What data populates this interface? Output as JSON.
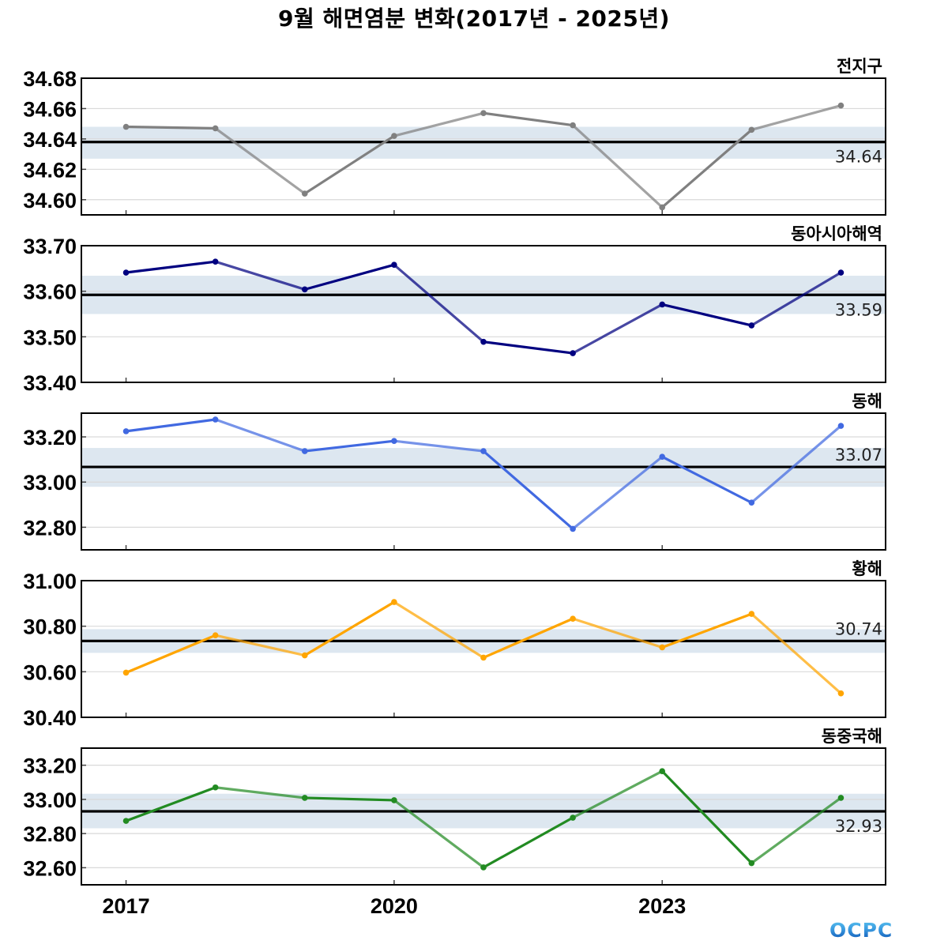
{
  "title": "9월 해면염분 변화(2017년 - 2025년)",
  "logo_text": "OCPC",
  "chart_data": [
    {
      "type": "line",
      "title": "전지구",
      "x": [
        2017,
        2018,
        2019,
        2020,
        2021,
        2022,
        2023,
        2024,
        2025
      ],
      "xticks": [
        2017,
        2020,
        2023
      ],
      "xlim": [
        2016.5,
        2025.5
      ],
      "ylim": [
        34.59,
        34.68
      ],
      "yticks": [
        "34.60",
        "34.62",
        "34.64",
        "34.66",
        "34.68"
      ],
      "ytick_values": [
        34.6,
        34.62,
        34.64,
        34.66,
        34.68
      ],
      "values": [
        34.648,
        34.647,
        34.604,
        34.642,
        34.657,
        34.649,
        34.595,
        34.646,
        34.662
      ],
      "mean": 34.638,
      "mean_label": "34.64",
      "band": [
        34.627,
        34.648
      ],
      "color": "#808080",
      "mean_label_pos": "below"
    },
    {
      "type": "line",
      "title": "동아시아해역",
      "x": [
        2017,
        2018,
        2019,
        2020,
        2021,
        2022,
        2023,
        2024,
        2025
      ],
      "xticks": [
        2017,
        2020,
        2023
      ],
      "xlim": [
        2016.5,
        2025.5
      ],
      "ylim": [
        33.4,
        33.7
      ],
      "yticks": [
        "33.40",
        "33.50",
        "33.60",
        "33.70"
      ],
      "ytick_values": [
        33.4,
        33.5,
        33.6,
        33.7
      ],
      "values": [
        33.641,
        33.665,
        33.604,
        33.658,
        33.489,
        33.464,
        33.571,
        33.525,
        33.641
      ],
      "mean": 33.592,
      "mean_label": "33.59",
      "band": [
        33.55,
        33.634
      ],
      "color": "#000080",
      "mean_label_pos": "below"
    },
    {
      "type": "line",
      "title": "동해",
      "x": [
        2017,
        2018,
        2019,
        2020,
        2021,
        2022,
        2023,
        2024,
        2025
      ],
      "xticks": [
        2017,
        2020,
        2023
      ],
      "xlim": [
        2016.5,
        2025.5
      ],
      "ylim": [
        32.7,
        33.305
      ],
      "yticks": [
        "32.80",
        "33.00",
        "33.20"
      ],
      "ytick_values": [
        32.8,
        33.0,
        33.2
      ],
      "values": [
        33.225,
        33.277,
        33.137,
        33.182,
        33.137,
        32.793,
        33.112,
        32.909,
        33.249
      ],
      "mean": 33.067,
      "mean_label": "33.07",
      "band": [
        32.979,
        33.151
      ],
      "color": "#4169E1",
      "mean_label_pos": "above"
    },
    {
      "type": "line",
      "title": "황해",
      "x": [
        2017,
        2018,
        2019,
        2020,
        2021,
        2022,
        2023,
        2024,
        2025
      ],
      "xticks": [
        2017,
        2020,
        2023
      ],
      "xlim": [
        2016.5,
        2025.5
      ],
      "ylim": [
        30.4,
        31.0
      ],
      "yticks": [
        "30.40",
        "30.60",
        "30.80",
        "31.00"
      ],
      "ytick_values": [
        30.4,
        30.6,
        30.8,
        31.0
      ],
      "values": [
        30.596,
        30.76,
        30.672,
        30.906,
        30.662,
        30.833,
        30.707,
        30.854,
        30.505
      ],
      "mean": 30.735,
      "mean_label": "30.74",
      "band": [
        30.683,
        30.787
      ],
      "color": "#FFA500",
      "mean_label_pos": "above"
    },
    {
      "type": "line",
      "title": "동중국해",
      "x": [
        2017,
        2018,
        2019,
        2020,
        2021,
        2022,
        2023,
        2024,
        2025
      ],
      "xticks": [
        2017,
        2020,
        2023
      ],
      "xlim": [
        2016.5,
        2025.5
      ],
      "ylim": [
        32.5,
        33.3
      ],
      "yticks": [
        "32.60",
        "32.80",
        "33.00",
        "33.20"
      ],
      "ytick_values": [
        32.6,
        32.8,
        33.0,
        33.2
      ],
      "values": [
        32.874,
        33.07,
        33.009,
        32.995,
        32.602,
        32.893,
        33.165,
        32.627,
        33.009
      ],
      "mean": 32.93,
      "mean_label": "32.93",
      "band": [
        32.831,
        33.033
      ],
      "color": "#228B22",
      "mean_label_pos": "below"
    }
  ]
}
